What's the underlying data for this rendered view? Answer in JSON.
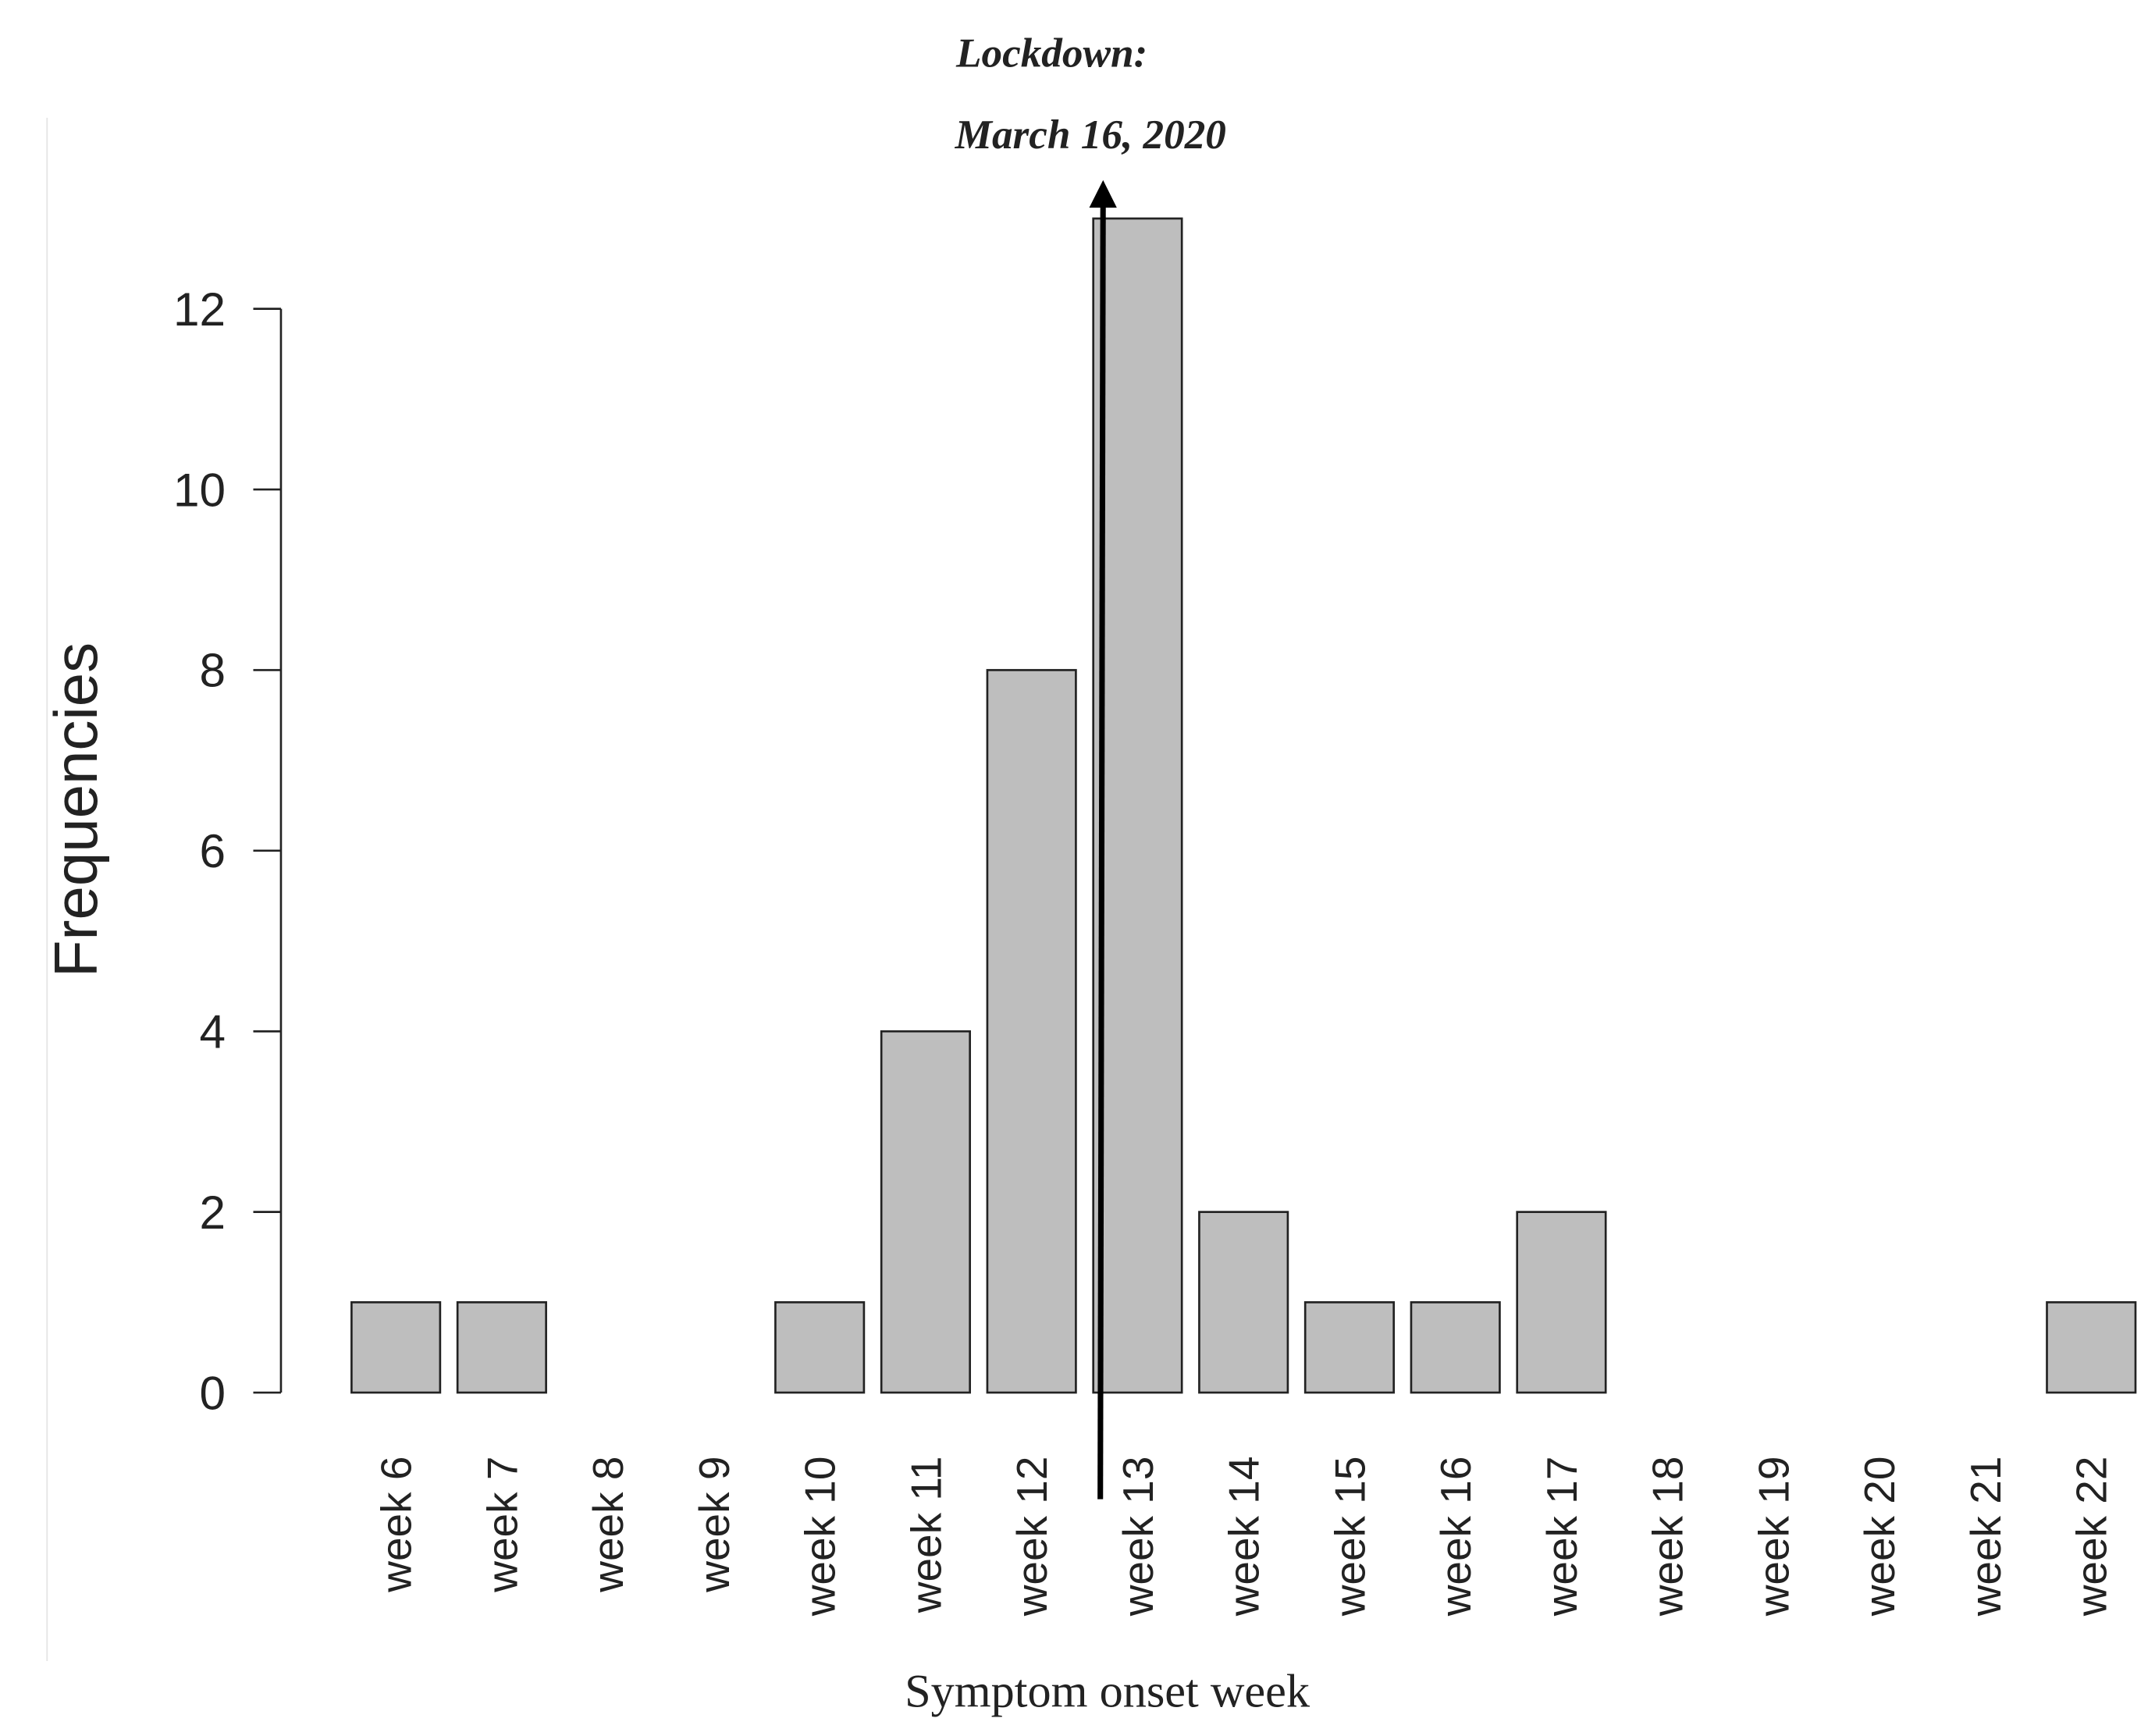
{
  "chart_data": {
    "type": "bar",
    "annotations": [
      "Lockdown:",
      "March 16, 2020"
    ],
    "x_label": "Symptom onset week",
    "y_label": "Frequencies",
    "categories": [
      "week 6",
      "week 7",
      "week 8",
      "week 9",
      "week 10",
      "week 11",
      "week 12",
      "week 13",
      "week 14",
      "week 15",
      "week 16",
      "week 17",
      "week 18",
      "week 19",
      "week 20",
      "week 21",
      "week 22"
    ],
    "values": [
      1,
      1,
      0,
      0,
      1,
      4,
      8,
      13,
      2,
      1,
      1,
      2,
      0,
      0,
      0,
      0,
      1
    ],
    "color": "#bebebe",
    "ylim": [
      0,
      12
    ],
    "yticks": [
      0,
      2,
      4,
      6,
      8,
      10,
      12
    ],
    "grid": false
  }
}
